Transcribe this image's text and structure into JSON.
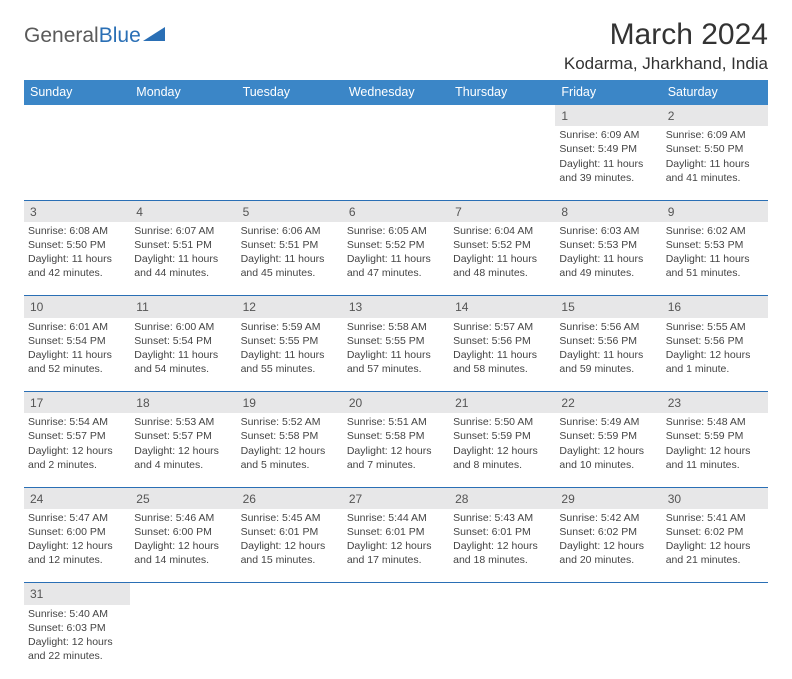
{
  "logo": {
    "part1": "General",
    "part2": "Blue"
  },
  "title": "March 2024",
  "location": "Kodarma, Jharkhand, India",
  "colors": {
    "header_bg": "#3b86c7",
    "header_fg": "#ffffff",
    "daynum_bg": "#e7e7e8",
    "rule": "#2a6fb5",
    "logo_accent": "#2a6fb5",
    "logo_gray": "#5a5a5a",
    "page_bg": "#ffffff",
    "text": "#444444"
  },
  "day_headers": [
    "Sunday",
    "Monday",
    "Tuesday",
    "Wednesday",
    "Thursday",
    "Friday",
    "Saturday"
  ],
  "weeks": [
    [
      null,
      null,
      null,
      null,
      null,
      {
        "n": "1",
        "sr": "Sunrise: 6:09 AM",
        "ss": "Sunset: 5:49 PM",
        "d1": "Daylight: 11 hours",
        "d2": "and 39 minutes."
      },
      {
        "n": "2",
        "sr": "Sunrise: 6:09 AM",
        "ss": "Sunset: 5:50 PM",
        "d1": "Daylight: 11 hours",
        "d2": "and 41 minutes."
      }
    ],
    [
      {
        "n": "3",
        "sr": "Sunrise: 6:08 AM",
        "ss": "Sunset: 5:50 PM",
        "d1": "Daylight: 11 hours",
        "d2": "and 42 minutes."
      },
      {
        "n": "4",
        "sr": "Sunrise: 6:07 AM",
        "ss": "Sunset: 5:51 PM",
        "d1": "Daylight: 11 hours",
        "d2": "and 44 minutes."
      },
      {
        "n": "5",
        "sr": "Sunrise: 6:06 AM",
        "ss": "Sunset: 5:51 PM",
        "d1": "Daylight: 11 hours",
        "d2": "and 45 minutes."
      },
      {
        "n": "6",
        "sr": "Sunrise: 6:05 AM",
        "ss": "Sunset: 5:52 PM",
        "d1": "Daylight: 11 hours",
        "d2": "and 47 minutes."
      },
      {
        "n": "7",
        "sr": "Sunrise: 6:04 AM",
        "ss": "Sunset: 5:52 PM",
        "d1": "Daylight: 11 hours",
        "d2": "and 48 minutes."
      },
      {
        "n": "8",
        "sr": "Sunrise: 6:03 AM",
        "ss": "Sunset: 5:53 PM",
        "d1": "Daylight: 11 hours",
        "d2": "and 49 minutes."
      },
      {
        "n": "9",
        "sr": "Sunrise: 6:02 AM",
        "ss": "Sunset: 5:53 PM",
        "d1": "Daylight: 11 hours",
        "d2": "and 51 minutes."
      }
    ],
    [
      {
        "n": "10",
        "sr": "Sunrise: 6:01 AM",
        "ss": "Sunset: 5:54 PM",
        "d1": "Daylight: 11 hours",
        "d2": "and 52 minutes."
      },
      {
        "n": "11",
        "sr": "Sunrise: 6:00 AM",
        "ss": "Sunset: 5:54 PM",
        "d1": "Daylight: 11 hours",
        "d2": "and 54 minutes."
      },
      {
        "n": "12",
        "sr": "Sunrise: 5:59 AM",
        "ss": "Sunset: 5:55 PM",
        "d1": "Daylight: 11 hours",
        "d2": "and 55 minutes."
      },
      {
        "n": "13",
        "sr": "Sunrise: 5:58 AM",
        "ss": "Sunset: 5:55 PM",
        "d1": "Daylight: 11 hours",
        "d2": "and 57 minutes."
      },
      {
        "n": "14",
        "sr": "Sunrise: 5:57 AM",
        "ss": "Sunset: 5:56 PM",
        "d1": "Daylight: 11 hours",
        "d2": "and 58 minutes."
      },
      {
        "n": "15",
        "sr": "Sunrise: 5:56 AM",
        "ss": "Sunset: 5:56 PM",
        "d1": "Daylight: 11 hours",
        "d2": "and 59 minutes."
      },
      {
        "n": "16",
        "sr": "Sunrise: 5:55 AM",
        "ss": "Sunset: 5:56 PM",
        "d1": "Daylight: 12 hours",
        "d2": "and 1 minute."
      }
    ],
    [
      {
        "n": "17",
        "sr": "Sunrise: 5:54 AM",
        "ss": "Sunset: 5:57 PM",
        "d1": "Daylight: 12 hours",
        "d2": "and 2 minutes."
      },
      {
        "n": "18",
        "sr": "Sunrise: 5:53 AM",
        "ss": "Sunset: 5:57 PM",
        "d1": "Daylight: 12 hours",
        "d2": "and 4 minutes."
      },
      {
        "n": "19",
        "sr": "Sunrise: 5:52 AM",
        "ss": "Sunset: 5:58 PM",
        "d1": "Daylight: 12 hours",
        "d2": "and 5 minutes."
      },
      {
        "n": "20",
        "sr": "Sunrise: 5:51 AM",
        "ss": "Sunset: 5:58 PM",
        "d1": "Daylight: 12 hours",
        "d2": "and 7 minutes."
      },
      {
        "n": "21",
        "sr": "Sunrise: 5:50 AM",
        "ss": "Sunset: 5:59 PM",
        "d1": "Daylight: 12 hours",
        "d2": "and 8 minutes."
      },
      {
        "n": "22",
        "sr": "Sunrise: 5:49 AM",
        "ss": "Sunset: 5:59 PM",
        "d1": "Daylight: 12 hours",
        "d2": "and 10 minutes."
      },
      {
        "n": "23",
        "sr": "Sunrise: 5:48 AM",
        "ss": "Sunset: 5:59 PM",
        "d1": "Daylight: 12 hours",
        "d2": "and 11 minutes."
      }
    ],
    [
      {
        "n": "24",
        "sr": "Sunrise: 5:47 AM",
        "ss": "Sunset: 6:00 PM",
        "d1": "Daylight: 12 hours",
        "d2": "and 12 minutes."
      },
      {
        "n": "25",
        "sr": "Sunrise: 5:46 AM",
        "ss": "Sunset: 6:00 PM",
        "d1": "Daylight: 12 hours",
        "d2": "and 14 minutes."
      },
      {
        "n": "26",
        "sr": "Sunrise: 5:45 AM",
        "ss": "Sunset: 6:01 PM",
        "d1": "Daylight: 12 hours",
        "d2": "and 15 minutes."
      },
      {
        "n": "27",
        "sr": "Sunrise: 5:44 AM",
        "ss": "Sunset: 6:01 PM",
        "d1": "Daylight: 12 hours",
        "d2": "and 17 minutes."
      },
      {
        "n": "28",
        "sr": "Sunrise: 5:43 AM",
        "ss": "Sunset: 6:01 PM",
        "d1": "Daylight: 12 hours",
        "d2": "and 18 minutes."
      },
      {
        "n": "29",
        "sr": "Sunrise: 5:42 AM",
        "ss": "Sunset: 6:02 PM",
        "d1": "Daylight: 12 hours",
        "d2": "and 20 minutes."
      },
      {
        "n": "30",
        "sr": "Sunrise: 5:41 AM",
        "ss": "Sunset: 6:02 PM",
        "d1": "Daylight: 12 hours",
        "d2": "and 21 minutes."
      }
    ],
    [
      {
        "n": "31",
        "sr": "Sunrise: 5:40 AM",
        "ss": "Sunset: 6:03 PM",
        "d1": "Daylight: 12 hours",
        "d2": "and 22 minutes."
      },
      null,
      null,
      null,
      null,
      null,
      null
    ]
  ]
}
